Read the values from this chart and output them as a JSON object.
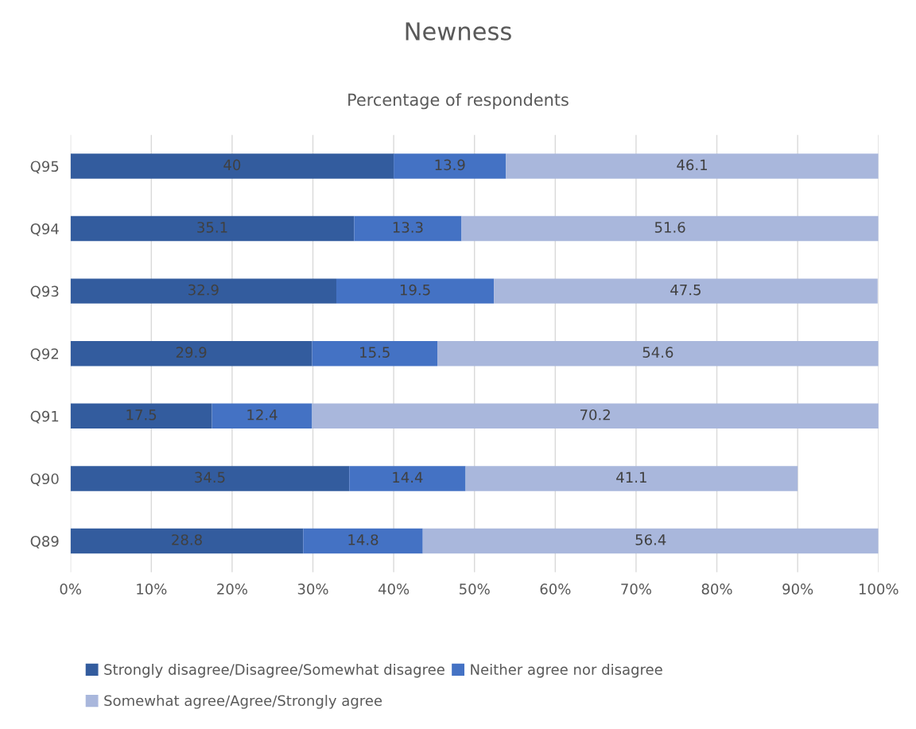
{
  "chart_data": {
    "type": "bar",
    "orientation": "horizontal",
    "stacked": true,
    "title": "Newness",
    "subtitle": "Percentage of respondents",
    "categories": [
      "Q95",
      "Q94",
      "Q93",
      "Q92",
      "Q91",
      "Q90",
      "Q89"
    ],
    "series": [
      {
        "name": "Strongly disagree/Disagree/Somewhat disagree",
        "color": "#335c9e",
        "values": [
          40,
          35.1,
          32.9,
          29.9,
          17.5,
          34.5,
          28.8
        ],
        "value_labels": [
          "40",
          "35.1",
          "32.9",
          "29.9",
          "17.5",
          "34.5",
          "28.8"
        ]
      },
      {
        "name": "Neither agree nor disagree",
        "color": "#4472c4",
        "values": [
          13.9,
          13.3,
          19.5,
          15.5,
          12.4,
          14.4,
          14.8
        ],
        "value_labels": [
          "13.9",
          "13.3",
          "19.5",
          "15.5",
          "12.4",
          "14.4",
          "14.8"
        ]
      },
      {
        "name": "Somewhat agree/Agree/Strongly agree",
        "color": "#a9b7dc",
        "values": [
          46.1,
          51.6,
          47.5,
          54.6,
          70.2,
          41.1,
          56.4
        ],
        "value_labels": [
          "46.1",
          "51.6",
          "47.5",
          "54.6",
          "70.2",
          "41.1",
          "56.4"
        ]
      }
    ],
    "xlim": [
      0,
      100
    ],
    "xticks": [
      {
        "value": 0,
        "label": "0%"
      },
      {
        "value": 10,
        "label": "10%"
      },
      {
        "value": 20,
        "label": "20%"
      },
      {
        "value": 30,
        "label": "30%"
      },
      {
        "value": 40,
        "label": "40%"
      },
      {
        "value": 50,
        "label": "50%"
      },
      {
        "value": 60,
        "label": "60%"
      },
      {
        "value": 70,
        "label": "70%"
      },
      {
        "value": 80,
        "label": "80%"
      },
      {
        "value": 90,
        "label": "90%"
      },
      {
        "value": 100,
        "label": "100%"
      }
    ],
    "grid": "x",
    "legend": "bottom"
  }
}
